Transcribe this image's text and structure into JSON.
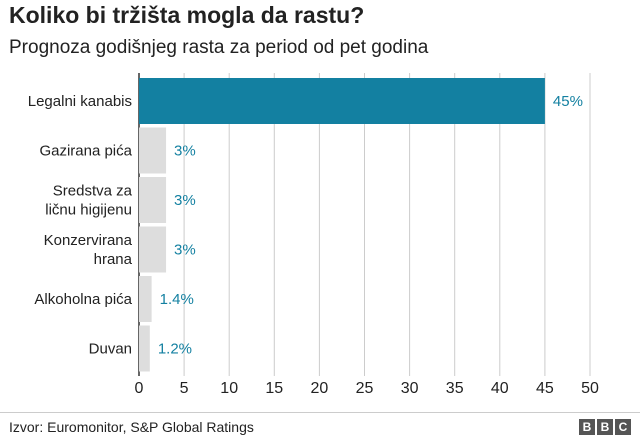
{
  "chart_data": {
    "type": "bar",
    "orientation": "horizontal",
    "title": "Koliko bi tržišta mogla da rastu?",
    "subtitle": "Prognoza godišnjeg rasta za period od pet godina",
    "categories": [
      [
        "Legalni kanabis"
      ],
      [
        "Gazirana pića"
      ],
      [
        "Sredstva za",
        "ličnu higijenu"
      ],
      [
        "Konzervirana",
        "hrana"
      ],
      [
        "Alkoholna pića"
      ],
      [
        "Duvan"
      ]
    ],
    "values": [
      45,
      3,
      3,
      3,
      1.4,
      1.2
    ],
    "value_labels": [
      "45%",
      "3%",
      "3%",
      "3%",
      "1.4%",
      "1.2%"
    ],
    "x_ticks": [
      "0",
      "5",
      "10",
      "15",
      "20",
      "25",
      "30",
      "35",
      "40",
      "45",
      "50"
    ],
    "xlim": [
      0,
      50
    ],
    "grid": true,
    "colors": {
      "highlight": "#1380A1",
      "other": "#dddddd",
      "label": "#1380A1",
      "grid": "#cccccc",
      "text": "#222222"
    }
  },
  "footer": {
    "source": "Izvor: Euromonitor, S&P Global Ratings",
    "logo": [
      "B",
      "B",
      "C"
    ]
  }
}
